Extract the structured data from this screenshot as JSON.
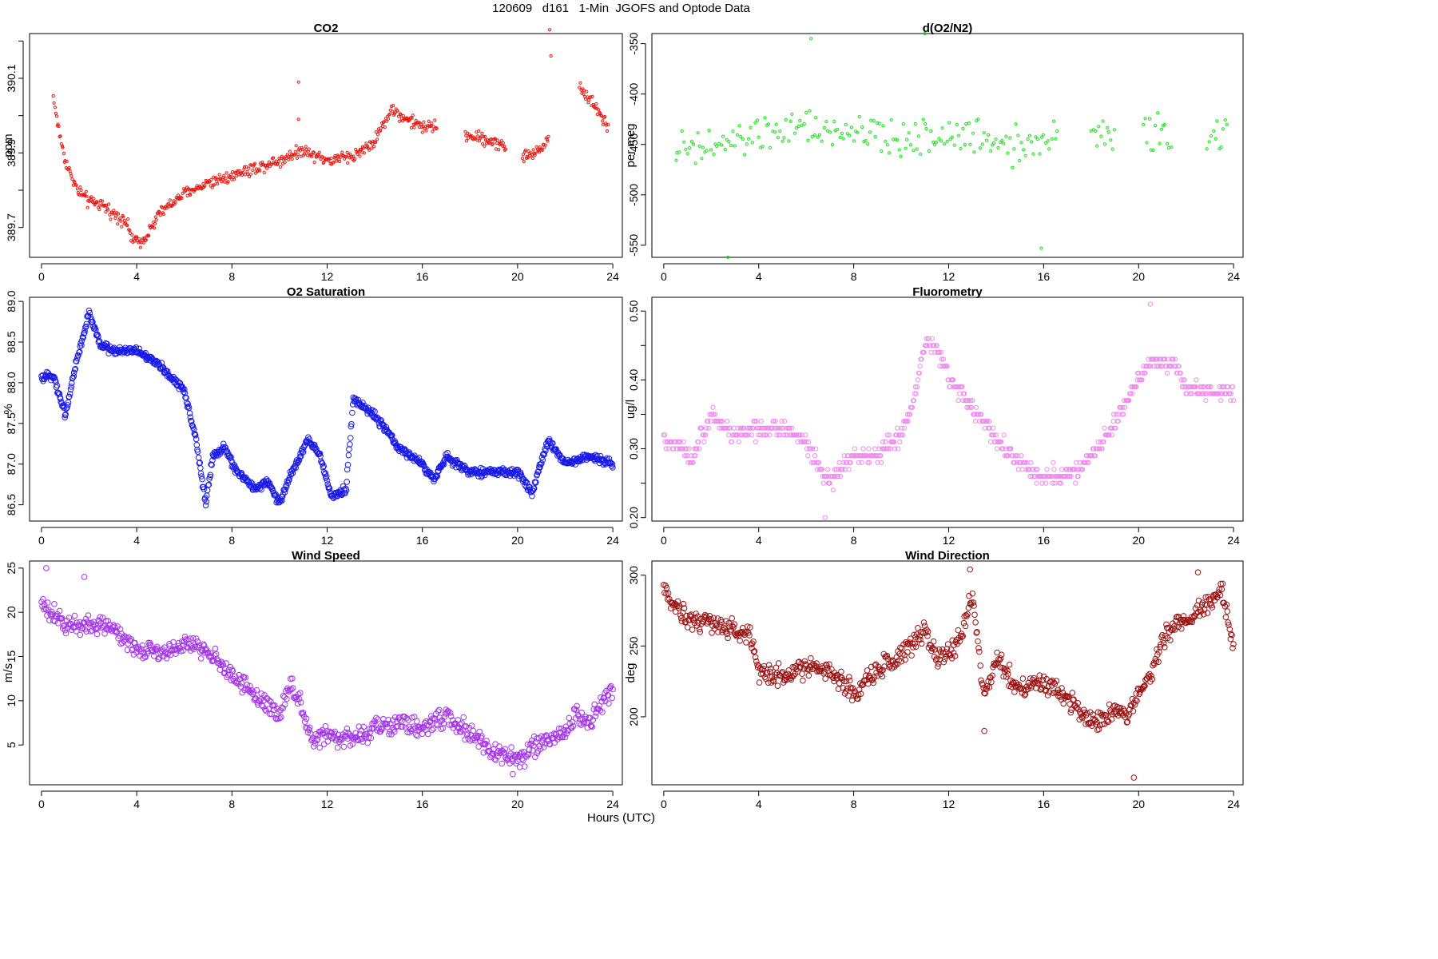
{
  "figure": {
    "title": "120609   d161   1-Min  JGOFS and Optode Data",
    "xlabel": "Hours (UTC)"
  },
  "chart_data": [
    {
      "type": "scatter",
      "title": "CO2",
      "ylabel": "ppm",
      "color": "#e8140e",
      "marker_size": "small",
      "xlim": [
        -0.5,
        24.4
      ],
      "ylim": [
        389.62,
        390.22
      ],
      "xticks": [
        0,
        4,
        8,
        12,
        16,
        20,
        24
      ],
      "yticks": [
        389.7,
        389.8,
        389.9,
        390.0,
        390.1,
        390.2
      ],
      "ytick_labels": [
        "389.7",
        "",
        "389.9",
        "",
        "390.1",
        ""
      ],
      "anchors": [
        [
          0.5,
          390.05
        ],
        [
          0.7,
          389.97
        ],
        [
          1.0,
          389.88
        ],
        [
          1.5,
          389.8
        ],
        [
          2.0,
          389.77
        ],
        [
          2.5,
          389.76
        ],
        [
          3.0,
          389.74
        ],
        [
          3.5,
          389.72
        ],
        [
          3.9,
          389.66
        ],
        [
          4.3,
          389.67
        ],
        [
          5.0,
          389.74
        ],
        [
          6.0,
          389.79
        ],
        [
          7.0,
          389.82
        ],
        [
          8.0,
          389.84
        ],
        [
          9.0,
          389.86
        ],
        [
          10.0,
          389.88
        ],
        [
          11.0,
          389.91
        ],
        [
          12.0,
          389.88
        ],
        [
          13.0,
          389.89
        ],
        [
          14.0,
          389.93
        ],
        [
          14.7,
          390.02
        ],
        [
          15.3,
          389.99
        ],
        [
          16.0,
          389.97
        ],
        [
          16.6,
          389.97
        ],
        [
          17.8,
          389.95
        ],
        [
          19.5,
          389.92
        ],
        [
          20.2,
          389.89
        ],
        [
          20.8,
          389.9
        ],
        [
          21.2,
          389.93
        ],
        [
          22.6,
          390.08
        ],
        [
          23.2,
          390.03
        ],
        [
          23.8,
          389.97
        ]
      ],
      "segments": [
        [
          0.5,
          16.6
        ],
        [
          17.8,
          19.5
        ],
        [
          20.2,
          21.3
        ],
        [
          22.6,
          23.8
        ]
      ],
      "outliers": [
        [
          10.8,
          390.09
        ],
        [
          10.8,
          389.99
        ],
        [
          21.35,
          390.23
        ],
        [
          21.4,
          390.16
        ]
      ],
      "jitter": 0.025,
      "interval_min": 2
    },
    {
      "type": "scatter",
      "title": "d(O2/N2)",
      "ylabel": "per meg",
      "color": "#16e316",
      "marker_size": "small",
      "xlim": [
        -0.5,
        24.4
      ],
      "ylim": [
        -562,
        -340
      ],
      "xticks": [
        0,
        4,
        8,
        12,
        16,
        20,
        24
      ],
      "yticks": [
        -550,
        -500,
        -450,
        -400,
        -350
      ],
      "ytick_labels": [
        "-550",
        "-500",
        "-450",
        "-400",
        "-350"
      ],
      "anchors": [
        [
          0.5,
          -455
        ],
        [
          2.0,
          -455
        ],
        [
          4.0,
          -440
        ],
        [
          6.0,
          -435
        ],
        [
          8.0,
          -440
        ],
        [
          10.0,
          -445
        ],
        [
          12.0,
          -440
        ],
        [
          14.0,
          -445
        ],
        [
          16.0,
          -450
        ],
        [
          16.6,
          -445
        ],
        [
          18.0,
          -435
        ],
        [
          19.0,
          -445
        ],
        [
          20.2,
          -440
        ],
        [
          21.4,
          -435
        ],
        [
          22.9,
          -450
        ],
        [
          23.8,
          -440
        ]
      ],
      "segments": [
        [
          0.5,
          16.6
        ],
        [
          18.0,
          19.0
        ],
        [
          20.2,
          21.4
        ],
        [
          22.9,
          23.8
        ]
      ],
      "outliers": [
        [
          2.7,
          -562
        ],
        [
          6.2,
          -345
        ],
        [
          11.0,
          -340
        ],
        [
          15.9,
          -553
        ]
      ],
      "jitter": 28,
      "interval_min": 5
    },
    {
      "type": "scatter",
      "title": "O2 Saturation",
      "ylabel": "%",
      "color": "#1a1ae6",
      "marker_size": "large",
      "xlim": [
        -0.5,
        24.4
      ],
      "ylim": [
        86.3,
        89.05
      ],
      "xticks": [
        0,
        4,
        8,
        12,
        16,
        20,
        24
      ],
      "yticks": [
        86.5,
        87.0,
        87.5,
        88.0,
        88.5,
        89.0
      ],
      "ytick_labels": [
        "86.5",
        "87.0",
        "87.5",
        "88.0",
        "88.5",
        "89.0"
      ],
      "anchors": [
        [
          0.0,
          88.05
        ],
        [
          0.5,
          88.1
        ],
        [
          1.0,
          87.6
        ],
        [
          1.5,
          88.3
        ],
        [
          2.0,
          88.85
        ],
        [
          2.5,
          88.45
        ],
        [
          3.0,
          88.4
        ],
        [
          4.0,
          88.4
        ],
        [
          5.0,
          88.2
        ],
        [
          6.0,
          87.9
        ],
        [
          6.5,
          87.3
        ],
        [
          6.9,
          86.5
        ],
        [
          7.2,
          87.1
        ],
        [
          7.7,
          87.2
        ],
        [
          8.2,
          86.9
        ],
        [
          9.0,
          86.7
        ],
        [
          9.5,
          86.8
        ],
        [
          10.0,
          86.5
        ],
        [
          10.5,
          86.9
        ],
        [
          11.2,
          87.3
        ],
        [
          11.7,
          87.1
        ],
        [
          12.2,
          86.6
        ],
        [
          12.8,
          86.7
        ],
        [
          13.1,
          87.8
        ],
        [
          14.0,
          87.6
        ],
        [
          15.0,
          87.2
        ],
        [
          16.0,
          87.0
        ],
        [
          16.5,
          86.8
        ],
        [
          17.0,
          87.1
        ],
        [
          18.0,
          86.9
        ],
        [
          19.0,
          86.9
        ],
        [
          20.0,
          86.9
        ],
        [
          20.6,
          86.65
        ],
        [
          21.3,
          87.3
        ],
        [
          22.0,
          87.0
        ],
        [
          23.0,
          87.1
        ],
        [
          24.0,
          87.0
        ]
      ],
      "segments": [
        [
          0.0,
          24.0
        ]
      ],
      "outliers": [],
      "jitter": 0.07,
      "interval_min": 1.5
    },
    {
      "type": "scatter",
      "title": "Fluorometry",
      "ylabel": "ug/l",
      "color": "#ef8aef",
      "marker_size": "medium",
      "xlim": [
        -0.5,
        24.4
      ],
      "ylim": [
        0.195,
        0.52
      ],
      "xticks": [
        0,
        4,
        8,
        12,
        16,
        20,
        24
      ],
      "yticks": [
        0.2,
        0.25,
        0.3,
        0.35,
        0.4,
        0.45,
        0.5
      ],
      "ytick_labels": [
        "0.20",
        "",
        "0.30",
        "",
        "0.40",
        "",
        "0.50"
      ],
      "anchors": [
        [
          0.0,
          0.31
        ],
        [
          0.8,
          0.3
        ],
        [
          1.1,
          0.28
        ],
        [
          1.5,
          0.31
        ],
        [
          2.0,
          0.35
        ],
        [
          2.5,
          0.33
        ],
        [
          3.0,
          0.32
        ],
        [
          4.0,
          0.33
        ],
        [
          5.0,
          0.33
        ],
        [
          6.0,
          0.31
        ],
        [
          6.6,
          0.27
        ],
        [
          7.0,
          0.25
        ],
        [
          7.5,
          0.27
        ],
        [
          8.0,
          0.29
        ],
        [
          9.0,
          0.29
        ],
        [
          10.0,
          0.32
        ],
        [
          10.5,
          0.37
        ],
        [
          11.0,
          0.45
        ],
        [
          11.5,
          0.45
        ],
        [
          12.0,
          0.4
        ],
        [
          13.0,
          0.36
        ],
        [
          14.0,
          0.31
        ],
        [
          15.0,
          0.28
        ],
        [
          15.8,
          0.26
        ],
        [
          16.5,
          0.26
        ],
        [
          17.5,
          0.27
        ],
        [
          18.5,
          0.31
        ],
        [
          19.5,
          0.37
        ],
        [
          20.5,
          0.43
        ],
        [
          21.5,
          0.42
        ],
        [
          22.0,
          0.39
        ],
        [
          23.0,
          0.38
        ],
        [
          24.0,
          0.38
        ]
      ],
      "segments": [
        [
          0.0,
          24.0
        ]
      ],
      "outliers": [
        [
          6.8,
          0.2
        ],
        [
          20.5,
          0.51
        ]
      ],
      "jitter": 0.018,
      "interval_min": 2,
      "quantize": 0.01
    },
    {
      "type": "scatter",
      "title": "Wind Speed",
      "ylabel": "m/s",
      "color": "#a233e8",
      "marker_size": "large",
      "xlim": [
        -0.5,
        24.4
      ],
      "ylim": [
        0.5,
        25.8
      ],
      "xticks": [
        0,
        4,
        8,
        12,
        16,
        20,
        24
      ],
      "yticks": [
        5,
        10,
        15,
        20,
        25
      ],
      "ytick_labels": [
        "5",
        "10",
        "15",
        "20",
        "25"
      ],
      "anchors": [
        [
          0.0,
          21.0
        ],
        [
          0.5,
          19.5
        ],
        [
          1.0,
          18.5
        ],
        [
          2.0,
          18.5
        ],
        [
          3.0,
          18.5
        ],
        [
          3.5,
          17.0
        ],
        [
          4.0,
          16.0
        ],
        [
          5.0,
          15.5
        ],
        [
          6.0,
          16.5
        ],
        [
          7.0,
          15.5
        ],
        [
          8.0,
          13.0
        ],
        [
          9.0,
          10.5
        ],
        [
          10.0,
          8.5
        ],
        [
          10.5,
          12.0
        ],
        [
          11.0,
          9.0
        ],
        [
          11.3,
          5.5
        ],
        [
          12.0,
          6.0
        ],
        [
          13.0,
          5.5
        ],
        [
          14.0,
          7.0
        ],
        [
          15.0,
          7.5
        ],
        [
          16.0,
          7.0
        ],
        [
          17.0,
          8.0
        ],
        [
          18.0,
          6.5
        ],
        [
          19.0,
          4.0
        ],
        [
          20.0,
          3.5
        ],
        [
          21.0,
          5.0
        ],
        [
          22.0,
          6.5
        ],
        [
          22.5,
          8.5
        ],
        [
          23.0,
          7.5
        ],
        [
          24.0,
          11.5
        ]
      ],
      "segments": [
        [
          0.0,
          24.0
        ]
      ],
      "outliers": [
        [
          0.2,
          25.0
        ],
        [
          1.8,
          24.0
        ],
        [
          19.8,
          1.7
        ]
      ],
      "jitter": 1.6,
      "interval_min": 2
    },
    {
      "type": "scatter",
      "title": "Wind Direction",
      "ylabel": "deg",
      "color": "#9a1010",
      "marker_size": "large",
      "xlim": [
        -0.5,
        24.4
      ],
      "ylim": [
        152,
        310
      ],
      "xticks": [
        0,
        4,
        8,
        12,
        16,
        20,
        24
      ],
      "yticks": [
        200,
        250,
        300
      ],
      "ytick_labels": [
        "200",
        "250",
        "300"
      ],
      "anchors": [
        [
          0.0,
          290
        ],
        [
          0.5,
          278
        ],
        [
          1.0,
          270
        ],
        [
          2.0,
          266
        ],
        [
          3.0,
          262
        ],
        [
          3.6,
          258
        ],
        [
          4.0,
          232
        ],
        [
          5.0,
          228
        ],
        [
          6.0,
          235
        ],
        [
          7.0,
          232
        ],
        [
          8.0,
          215
        ],
        [
          9.0,
          232
        ],
        [
          10.0,
          245
        ],
        [
          11.0,
          262
        ],
        [
          11.5,
          240
        ],
        [
          12.0,
          245
        ],
        [
          12.5,
          255
        ],
        [
          13.0,
          285
        ],
        [
          13.5,
          215
        ],
        [
          14.0,
          240
        ],
        [
          15.0,
          220
        ],
        [
          16.0,
          225
        ],
        [
          17.0,
          215
        ],
        [
          18.0,
          195
        ],
        [
          19.0,
          205
        ],
        [
          19.5,
          200
        ],
        [
          20.0,
          215
        ],
        [
          20.5,
          230
        ],
        [
          21.0,
          255
        ],
        [
          22.0,
          270
        ],
        [
          23.0,
          280
        ],
        [
          23.5,
          290
        ],
        [
          24.0,
          250
        ]
      ],
      "segments": [
        [
          0.0,
          24.0
        ]
      ],
      "outliers": [
        [
          19.8,
          157
        ],
        [
          12.9,
          304
        ],
        [
          22.5,
          302
        ],
        [
          13.5,
          190
        ]
      ],
      "jitter": 11,
      "interval_min": 2
    }
  ]
}
